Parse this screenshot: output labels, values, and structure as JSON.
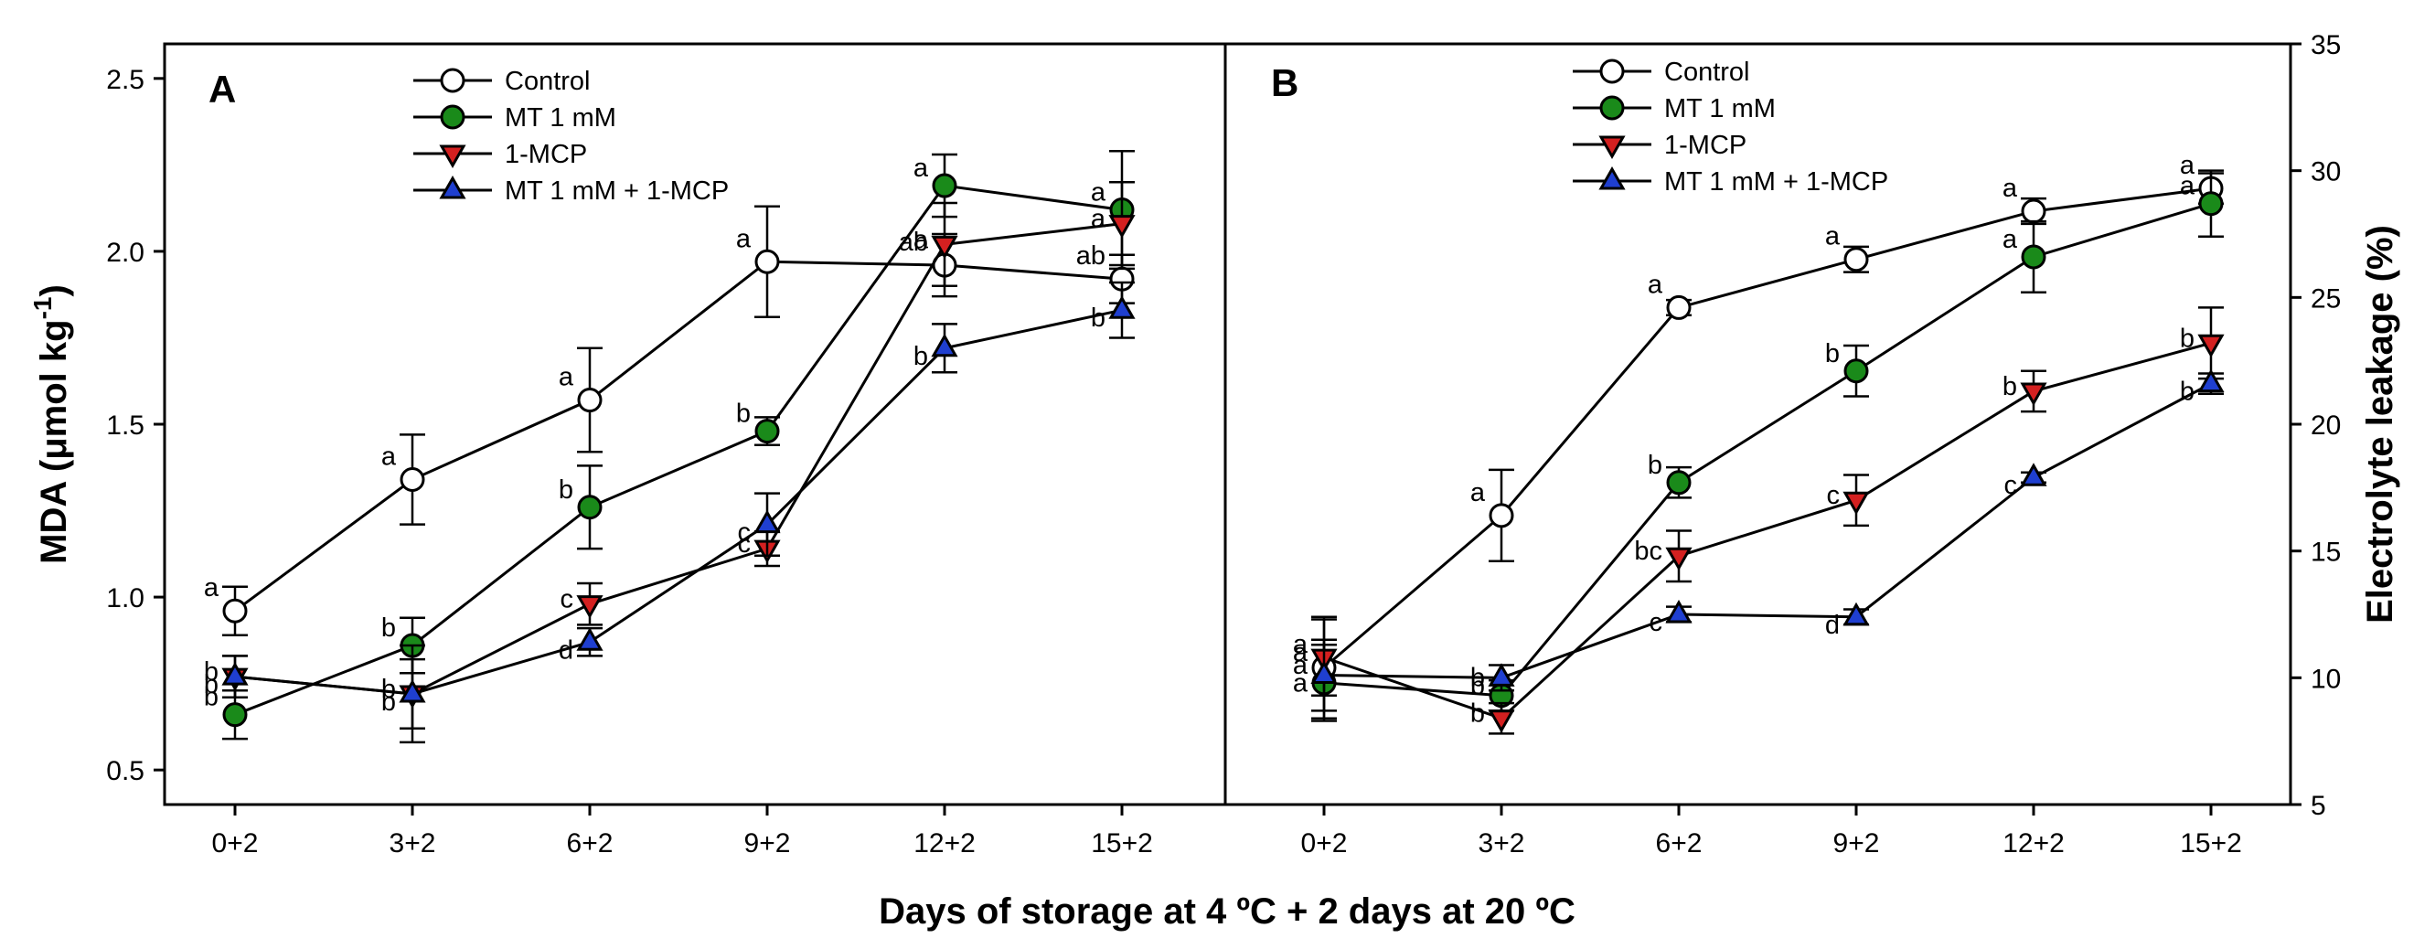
{
  "figure": {
    "xlabel": "Days of storage at 4 ºC + 2 days at 20 ºC"
  },
  "chart_data": [
    {
      "panel": "A",
      "type": "line",
      "ylabel_main": "MDA (μmol kg",
      "ylabel_sup": "-1",
      "ylabel_end": ")",
      "yaxis_side": "left",
      "ylim": [
        0.4,
        2.6
      ],
      "yticks": [
        0.5,
        1.0,
        1.5,
        2.0,
        2.5
      ],
      "ytick_labels": [
        "0.5",
        "1.0",
        "1.5",
        "2.0",
        "2.5"
      ],
      "categories": [
        "0+2",
        "3+2",
        "6+2",
        "9+2",
        "12+2",
        "15+2"
      ],
      "series": [
        {
          "name": "Control",
          "marker": "circle",
          "color": "#ffffff",
          "values": [
            0.96,
            1.34,
            1.57,
            1.97,
            1.96,
            1.92
          ],
          "errors": [
            0.07,
            0.13,
            0.15,
            0.16,
            0.09,
            0.07
          ],
          "letters": [
            "a",
            "a",
            "a",
            "a",
            "ab",
            "ab"
          ]
        },
        {
          "name": "MT 1 mM",
          "marker": "circle",
          "color": "#1a8a1a",
          "values": [
            0.66,
            0.86,
            1.26,
            1.48,
            2.19,
            2.12
          ],
          "errors": [
            0.07,
            0.08,
            0.12,
            0.04,
            0.09,
            0.17
          ],
          "letters": [
            "b",
            "b",
            "b",
            "b",
            "a",
            "a"
          ]
        },
        {
          "name": "1-MCP",
          "marker": "triangle-down",
          "color": "#d42020",
          "values": [
            0.77,
            0.72,
            0.98,
            1.14,
            2.02,
            2.08
          ],
          "errors": [
            0.06,
            0.1,
            0.06,
            0.05,
            0.12,
            0.12
          ],
          "letters": [
            "b",
            "b",
            "c",
            "c",
            "a",
            "a"
          ]
        },
        {
          "name": "MT 1 mM + 1-MCP",
          "marker": "triangle-up",
          "color": "#1f3fd0",
          "values": [
            0.77,
            0.72,
            0.87,
            1.21,
            1.72,
            1.83
          ],
          "errors": [
            0.06,
            0.14,
            0.04,
            0.09,
            0.07,
            0.08
          ],
          "letters": [
            "b",
            "b",
            "d",
            "c",
            "b",
            "b"
          ]
        }
      ]
    },
    {
      "panel": "B",
      "type": "line",
      "ylabel_main": "Electrolyte leakage (%)",
      "yaxis_side": "right",
      "ylim": [
        5,
        35
      ],
      "yticks": [
        5,
        10,
        15,
        20,
        25,
        30,
        35
      ],
      "ytick_labels": [
        "5",
        "10",
        "15",
        "20",
        "25",
        "30",
        "35"
      ],
      "categories": [
        "0+2",
        "3+2",
        "6+2",
        "9+2",
        "12+2",
        "15+2"
      ],
      "series": [
        {
          "name": "Control",
          "marker": "circle",
          "color": "#ffffff",
          "values": [
            10.4,
            16.4,
            24.6,
            26.5,
            28.4,
            29.3
          ],
          "errors": [
            2.0,
            1.8,
            0.3,
            0.5,
            0.5,
            0.6
          ],
          "letters": [
            "a",
            "a",
            "a",
            "a",
            "a",
            "a"
          ]
        },
        {
          "name": "MT 1 mM",
          "marker": "circle",
          "color": "#1a8a1a",
          "values": [
            9.8,
            9.3,
            17.7,
            22.1,
            26.6,
            28.7
          ],
          "errors": [
            1.5,
            0.6,
            0.6,
            1.0,
            1.4,
            1.3
          ],
          "letters": [
            "a",
            "b",
            "b",
            "b",
            "a",
            "a"
          ]
        },
        {
          "name": "1-MCP",
          "marker": "triangle-down",
          "color": "#d42020",
          "values": [
            10.8,
            8.4,
            14.8,
            17.0,
            21.3,
            23.2
          ],
          "errors": [
            1.5,
            0.6,
            1.0,
            1.0,
            0.8,
            1.4
          ],
          "letters": [
            "a",
            "b",
            "bc",
            "c",
            "b",
            "b"
          ]
        },
        {
          "name": "MT 1 mM + 1-MCP",
          "marker": "triangle-up",
          "color": "#1f3fd0",
          "values": [
            10.1,
            10.0,
            12.5,
            12.4,
            17.9,
            21.6
          ],
          "errors": [
            1.4,
            0.5,
            0.3,
            0.3,
            0.2,
            0.4
          ],
          "letters": [
            "a",
            "b",
            "c",
            "d",
            "c",
            "b"
          ]
        }
      ]
    }
  ]
}
